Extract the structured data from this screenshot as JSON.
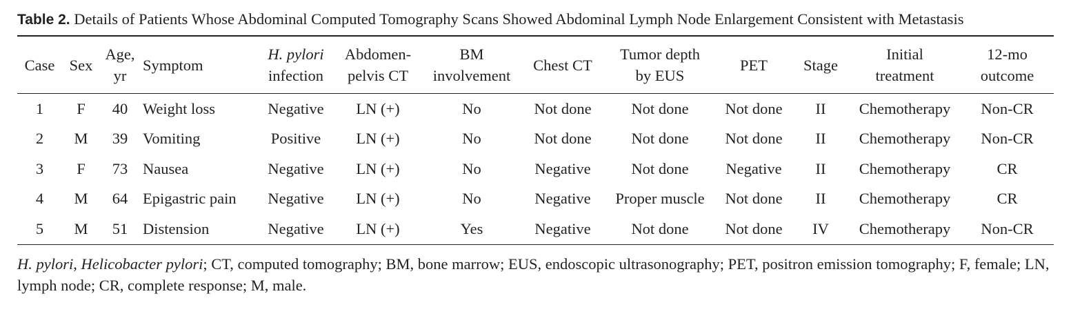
{
  "caption": {
    "label": "Table 2.",
    "text": "Details of Patients Whose Abdominal Computed Tomography Scans Showed Abdominal Lymph Node Enlargement Consistent with Metastasis"
  },
  "table": {
    "header": [
      [
        "Case"
      ],
      [
        "Sex"
      ],
      [
        "Age,",
        "yr"
      ],
      [
        "Symptom"
      ],
      [
        "H. pylori",
        "infection"
      ],
      [
        "Abdomen-",
        "pelvis CT"
      ],
      [
        "BM",
        "involvement"
      ],
      [
        "Chest CT"
      ],
      [
        "Tumor depth",
        "by EUS"
      ],
      [
        "PET"
      ],
      [
        "Stage"
      ],
      [
        "Initial",
        "treatment"
      ],
      [
        "12-mo",
        "outcome"
      ]
    ],
    "rows": [
      [
        "1",
        "F",
        "40",
        "Weight loss",
        "Negative",
        "LN (+)",
        "No",
        "Not done",
        "Not done",
        "Not done",
        "II",
        "Chemotherapy",
        "Non-CR"
      ],
      [
        "2",
        "M",
        "39",
        "Vomiting",
        "Positive",
        "LN (+)",
        "No",
        "Not done",
        "Not done",
        "Not done",
        "II",
        "Chemotherapy",
        "Non-CR"
      ],
      [
        "3",
        "F",
        "73",
        "Nausea",
        "Negative",
        "LN (+)",
        "No",
        "Negative",
        "Not done",
        "Negative",
        "II",
        "Chemotherapy",
        "CR"
      ],
      [
        "4",
        "M",
        "64",
        "Epigastric pain",
        "Negative",
        "LN (+)",
        "No",
        "Negative",
        "Proper muscle",
        "Not done",
        "II",
        "Chemotherapy",
        "CR"
      ],
      [
        "5",
        "M",
        "51",
        "Distension",
        "Negative",
        "LN (+)",
        "Yes",
        "Negative",
        "Not done",
        "Not done",
        "IV",
        "Chemotherapy",
        "Non-CR"
      ]
    ]
  },
  "footnote": [
    "H. pylori",
    ", ",
    "Helicobacter pylori",
    "; CT, computed tomography; BM, bone marrow; EUS, endoscopic ultrasonography; PET, positron emission tomography; F, female; LN, lymph node; CR, complete response; M, male."
  ]
}
